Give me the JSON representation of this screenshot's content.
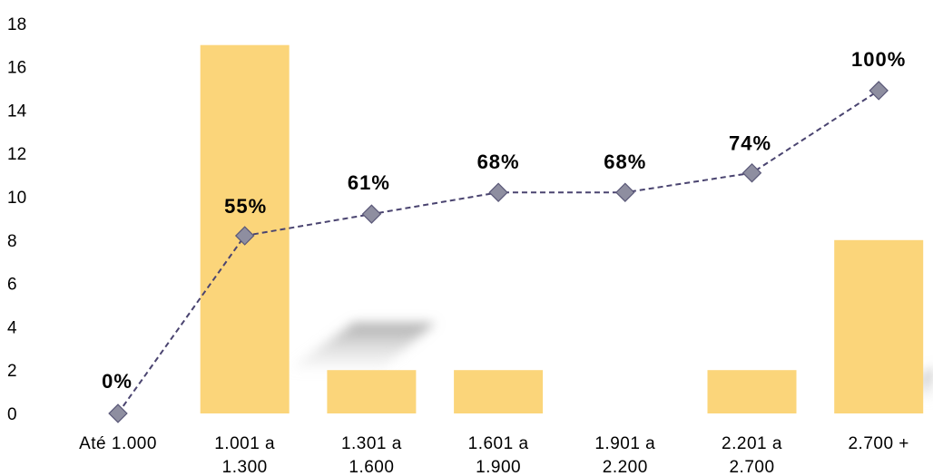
{
  "chart_data": {
    "type": "bar",
    "categories": [
      [
        "Até 1.000"
      ],
      [
        "1.001 a",
        "1.300"
      ],
      [
        "1.301 a",
        "1.600"
      ],
      [
        "1.601 a",
        "1.900"
      ],
      [
        "1.901 a",
        "2.200"
      ],
      [
        "2.201 a",
        "2.700"
      ],
      [
        "2.700 +"
      ]
    ],
    "series": [
      {
        "type": "bar",
        "values": [
          0,
          17,
          2,
          2,
          0,
          2,
          8
        ],
        "color": "#FBD57A"
      },
      {
        "type": "line",
        "values": [
          0,
          8.2,
          9.2,
          10.2,
          10.2,
          11.1,
          14.9
        ],
        "labels": [
          "0%",
          "55%",
          "61%",
          "68%",
          "68%",
          "74%",
          "100%"
        ],
        "color": "#4A4470",
        "marker_color": "#8E8EA0",
        "style": "dashed"
      }
    ],
    "ylim": [
      0,
      18
    ],
    "yticks": [
      0,
      2,
      4,
      6,
      8,
      10,
      12,
      14,
      16,
      18
    ],
    "grid": false,
    "legend": "none"
  }
}
